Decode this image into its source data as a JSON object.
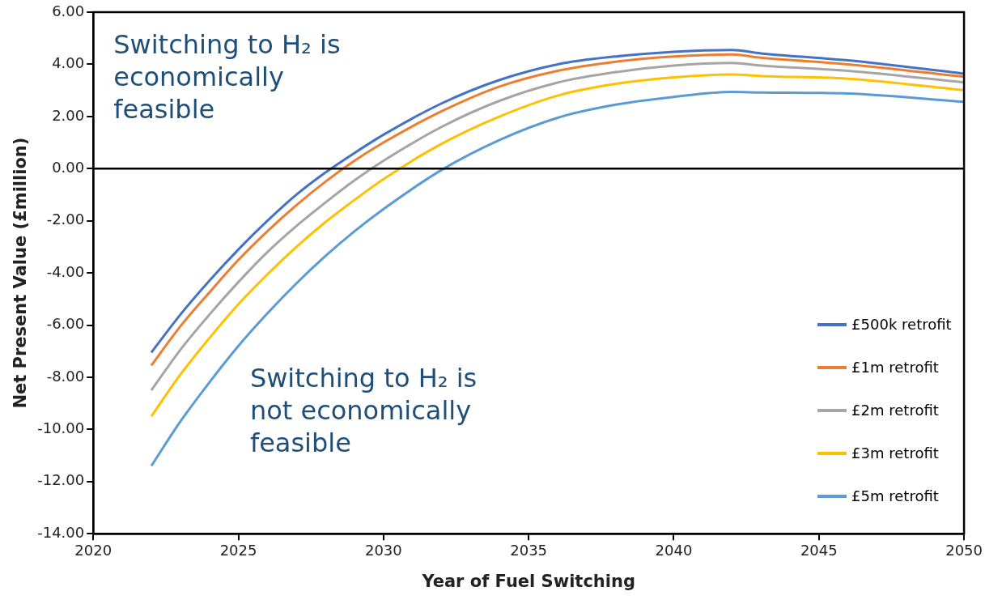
{
  "chart_data": {
    "type": "line",
    "xlabel": "Year of Fuel Switching",
    "ylabel": "Net Present Value (£million)",
    "x": [
      2022,
      2023,
      2024,
      2025,
      2026,
      2027,
      2028,
      2029,
      2030,
      2032,
      2034,
      2036,
      2038,
      2040,
      2042,
      2043,
      2046,
      2050
    ],
    "series": [
      {
        "name": "£500k retrofit",
        "color": "#4472c4",
        "values": [
          -7.05,
          -5.6,
          -4.3,
          -3.1,
          -2.0,
          -1.0,
          -0.15,
          0.6,
          1.3,
          2.5,
          3.4,
          4.0,
          4.3,
          4.48,
          4.55,
          4.42,
          4.15,
          3.64
        ]
      },
      {
        "name": "£1m retrofit",
        "color": "#ed7d31",
        "values": [
          -7.55,
          -6.05,
          -4.75,
          -3.5,
          -2.4,
          -1.4,
          -0.5,
          0.3,
          1.0,
          2.2,
          3.15,
          3.75,
          4.1,
          4.3,
          4.38,
          4.25,
          4.0,
          3.52
        ]
      },
      {
        "name": "£2m retrofit",
        "color": "#a5a5a5",
        "values": [
          -8.5,
          -6.95,
          -5.6,
          -4.35,
          -3.2,
          -2.2,
          -1.3,
          -0.45,
          0.3,
          1.6,
          2.6,
          3.3,
          3.7,
          3.95,
          4.05,
          3.95,
          3.75,
          3.31
        ]
      },
      {
        "name": "£3m retrofit",
        "color": "#ffc000",
        "values": [
          -9.5,
          -7.9,
          -6.5,
          -5.2,
          -4.05,
          -3.0,
          -2.05,
          -1.2,
          -0.4,
          0.95,
          2.0,
          2.8,
          3.25,
          3.5,
          3.61,
          3.55,
          3.45,
          3.01
        ]
      },
      {
        "name": "£5m retrofit",
        "color": "#5b9bd5",
        "values": [
          -11.4,
          -9.7,
          -8.2,
          -6.8,
          -5.55,
          -4.4,
          -3.35,
          -2.4,
          -1.55,
          -0.05,
          1.1,
          1.95,
          2.45,
          2.75,
          2.94,
          2.92,
          2.88,
          2.56
        ]
      }
    ],
    "xlim": [
      2020,
      2050
    ],
    "xticks": [
      2020,
      2025,
      2030,
      2035,
      2040,
      2045,
      2050
    ],
    "ylim": [
      -14,
      6
    ],
    "yticks": [
      {
        "value": -14,
        "label": "-14.00"
      },
      {
        "value": -12,
        "label": "-12.00"
      },
      {
        "value": -10,
        "label": "-10.00"
      },
      {
        "value": -8,
        "label": "-8.00"
      },
      {
        "value": -6,
        "label": "-6.00"
      },
      {
        "value": -4,
        "label": "-4.00"
      },
      {
        "value": -2,
        "label": "-2.00"
      },
      {
        "value": 0,
        "label": "0.00"
      },
      {
        "value": 2,
        "label": "2.00"
      },
      {
        "value": 4,
        "label": "4.00"
      },
      {
        "value": 6,
        "label": "6.00"
      }
    ],
    "ref_lines": [
      {
        "axis": "y",
        "value": 0,
        "color": "#000000"
      }
    ],
    "annotations": [
      "Switching to H₂ is economically feasible",
      "Switching to H₂ is not economically feasible"
    ],
    "legend": "bottom right",
    "grid": false,
    "marker": "none",
    "line_style": "solid"
  }
}
